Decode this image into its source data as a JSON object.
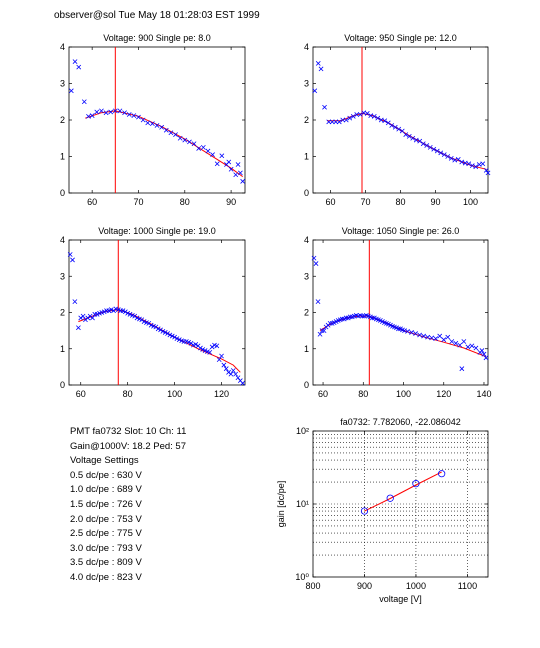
{
  "header": "observer@sol  Tue May 18 01:28:03 EST 1999",
  "info": {
    "pmt_line": "PMT fa0732 Slot: 10 Ch: 11",
    "gain_line": "Gain@1000V: 18.2  Ped: 57",
    "settings_title": "Voltage Settings",
    "settings": [
      "0.5 dc/pe : 630 V",
      "1.0 dc/pe : 689 V",
      "1.5 dc/pe : 726 V",
      "2.0 dc/pe : 753 V",
      "2.5 dc/pe : 775 V",
      "3.0 dc/pe : 793 V",
      "3.5 dc/pe : 809 V",
      "4.0 dc/pe : 823 V"
    ]
  },
  "colors": {
    "points": "#0000ff",
    "fit": "#ff0000",
    "axis": "#000000"
  },
  "chart_data": [
    {
      "type": "scatter",
      "title": "Voltage: 900 Single pe: 8.0",
      "xlim": [
        55,
        93
      ],
      "ylim": [
        0,
        4
      ],
      "xticks": [
        60,
        70,
        80,
        90
      ],
      "yticks": [
        0,
        1,
        2,
        3,
        4
      ],
      "single_pe_marker": 65,
      "points": [
        [
          55.5,
          2.8
        ],
        [
          56.3,
          3.6
        ],
        [
          57.1,
          3.45
        ],
        [
          58.3,
          2.5
        ],
        [
          59.2,
          2.1
        ],
        [
          60,
          2.12
        ],
        [
          61,
          2.22
        ],
        [
          62,
          2.25
        ],
        [
          63,
          2.2
        ],
        [
          64,
          2.22
        ],
        [
          65,
          2.25
        ],
        [
          66,
          2.25
        ],
        [
          67,
          2.2
        ],
        [
          68,
          2.15
        ],
        [
          69,
          2.12
        ],
        [
          70,
          2.08
        ],
        [
          71,
          2.0
        ],
        [
          72,
          1.92
        ],
        [
          73,
          1.9
        ],
        [
          74,
          1.85
        ],
        [
          75,
          1.8
        ],
        [
          76,
          1.72
        ],
        [
          77,
          1.65
        ],
        [
          78,
          1.6
        ],
        [
          79,
          1.5
        ],
        [
          80,
          1.45
        ],
        [
          81,
          1.4
        ],
        [
          82,
          1.35
        ],
        [
          83,
          1.22
        ],
        [
          84,
          1.25
        ],
        [
          85,
          1.15
        ],
        [
          86,
          1.05
        ],
        [
          87,
          0.8
        ],
        [
          88,
          1.02
        ],
        [
          89,
          0.78
        ],
        [
          89.5,
          0.85
        ],
        [
          90,
          0.65
        ],
        [
          91,
          0.5
        ],
        [
          91.5,
          0.78
        ],
        [
          92,
          0.55
        ],
        [
          92.5,
          0.32
        ]
      ],
      "fit": [
        [
          58.5,
          2.05
        ],
        [
          62,
          2.2
        ],
        [
          65,
          2.25
        ],
        [
          70,
          2.1
        ],
        [
          75,
          1.82
        ],
        [
          80,
          1.48
        ],
        [
          85,
          1.08
        ],
        [
          90,
          0.68
        ],
        [
          92.5,
          0.45
        ]
      ]
    },
    {
      "type": "scatter",
      "title": "Voltage: 950 Single pe: 12.0",
      "xlim": [
        55,
        105
      ],
      "ylim": [
        0,
        4
      ],
      "xticks": [
        60,
        70,
        80,
        90,
        100
      ],
      "yticks": [
        0,
        1,
        2,
        3,
        4
      ],
      "single_pe_marker": 69,
      "points": [
        [
          55.5,
          2.8
        ],
        [
          56.5,
          3.55
        ],
        [
          57.3,
          3.4
        ],
        [
          58.3,
          2.35
        ],
        [
          59.5,
          1.95
        ],
        [
          60.5,
          1.95
        ],
        [
          61.5,
          1.95
        ],
        [
          62.5,
          1.95
        ],
        [
          63.5,
          2.0
        ],
        [
          64.5,
          2.0
        ],
        [
          65.5,
          2.05
        ],
        [
          66.5,
          2.1
        ],
        [
          67.5,
          2.15
        ],
        [
          68.5,
          2.15
        ],
        [
          69.5,
          2.2
        ],
        [
          70.5,
          2.18
        ],
        [
          71.5,
          2.12
        ],
        [
          72.5,
          2.1
        ],
        [
          73.5,
          2.05
        ],
        [
          74.5,
          2.0
        ],
        [
          75.5,
          1.98
        ],
        [
          76.5,
          1.92
        ],
        [
          77.5,
          1.85
        ],
        [
          78.5,
          1.8
        ],
        [
          79.5,
          1.75
        ],
        [
          80.5,
          1.7
        ],
        [
          81.5,
          1.6
        ],
        [
          82.5,
          1.55
        ],
        [
          83.5,
          1.5
        ],
        [
          84.5,
          1.45
        ],
        [
          85.5,
          1.42
        ],
        [
          86.5,
          1.35
        ],
        [
          87.5,
          1.3
        ],
        [
          88.5,
          1.25
        ],
        [
          89.5,
          1.2
        ],
        [
          90.5,
          1.15
        ],
        [
          91.5,
          1.1
        ],
        [
          92.5,
          1.05
        ],
        [
          93.5,
          1.0
        ],
        [
          94.5,
          0.95
        ],
        [
          95.5,
          0.9
        ],
        [
          96.5,
          0.92
        ],
        [
          97.5,
          0.85
        ],
        [
          98.5,
          0.82
        ],
        [
          99.5,
          0.8
        ],
        [
          100.5,
          0.75
        ],
        [
          101.5,
          0.72
        ],
        [
          102.5,
          0.78
        ],
        [
          103.5,
          0.8
        ],
        [
          104.5,
          0.62
        ],
        [
          105,
          0.55
        ]
      ],
      "fit": [
        [
          59,
          1.98
        ],
        [
          63,
          1.98
        ],
        [
          66,
          2.1
        ],
        [
          69,
          2.18
        ],
        [
          72,
          2.12
        ],
        [
          77,
          1.9
        ],
        [
          82,
          1.6
        ],
        [
          88,
          1.28
        ],
        [
          94,
          0.98
        ],
        [
          100,
          0.76
        ],
        [
          104.5,
          0.65
        ]
      ]
    },
    {
      "type": "scatter",
      "title": "Voltage: 1000 Single pe: 19.0",
      "xlim": [
        55,
        130
      ],
      "ylim": [
        0,
        4
      ],
      "xticks": [
        60,
        80,
        100,
        120
      ],
      "yticks": [
        0,
        1,
        2,
        3,
        4
      ],
      "single_pe_marker": 76,
      "points": [
        [
          55.5,
          3.6
        ],
        [
          56.5,
          3.45
        ],
        [
          57.5,
          2.3
        ],
        [
          59,
          1.58
        ],
        [
          60,
          1.85
        ],
        [
          61,
          1.9
        ],
        [
          62,
          1.8
        ],
        [
          63,
          1.85
        ],
        [
          64,
          1.9
        ],
        [
          65,
          1.85
        ],
        [
          66,
          1.95
        ],
        [
          67,
          1.95
        ],
        [
          68,
          1.98
        ],
        [
          69,
          2.0
        ],
        [
          70,
          2.02
        ],
        [
          71,
          2.05
        ],
        [
          72,
          2.05
        ],
        [
          73,
          2.08
        ],
        [
          74,
          2.05
        ],
        [
          75,
          2.1
        ],
        [
          76,
          2.08
        ],
        [
          77,
          2.05
        ],
        [
          78,
          2.05
        ],
        [
          79,
          2.02
        ],
        [
          80,
          1.98
        ],
        [
          81,
          1.95
        ],
        [
          82,
          1.92
        ],
        [
          83,
          1.9
        ],
        [
          84,
          1.85
        ],
        [
          85,
          1.82
        ],
        [
          86,
          1.8
        ],
        [
          87,
          1.75
        ],
        [
          88,
          1.72
        ],
        [
          89,
          1.7
        ],
        [
          90,
          1.65
        ],
        [
          91,
          1.62
        ],
        [
          92,
          1.6
        ],
        [
          93,
          1.55
        ],
        [
          94,
          1.52
        ],
        [
          95,
          1.48
        ],
        [
          96,
          1.45
        ],
        [
          97,
          1.42
        ],
        [
          98,
          1.38
        ],
        [
          99,
          1.35
        ],
        [
          100,
          1.32
        ],
        [
          101,
          1.28
        ],
        [
          102,
          1.25
        ],
        [
          103,
          1.22
        ],
        [
          104,
          1.2
        ],
        [
          105,
          1.2
        ],
        [
          106,
          1.18
        ],
        [
          107,
          1.15
        ],
        [
          108,
          1.1
        ],
        [
          109,
          1.12
        ],
        [
          110,
          1.08
        ],
        [
          111,
          1.02
        ],
        [
          112,
          0.98
        ],
        [
          113,
          0.95
        ],
        [
          114,
          0.92
        ],
        [
          115,
          0.9
        ],
        [
          116,
          1.05
        ],
        [
          117,
          1.1
        ],
        [
          118,
          1.08
        ],
        [
          119,
          0.7
        ],
        [
          120,
          0.8
        ],
        [
          121,
          0.55
        ],
        [
          122,
          0.45
        ],
        [
          123,
          0.35
        ],
        [
          124,
          0.3
        ],
        [
          125,
          0.4
        ],
        [
          126,
          0.3
        ],
        [
          127,
          0.2
        ],
        [
          128,
          0.12
        ],
        [
          129,
          0.05
        ]
      ],
      "fit": [
        [
          59,
          1.75
        ],
        [
          65,
          1.9
        ],
        [
          70,
          2.02
        ],
        [
          76,
          2.08
        ],
        [
          82,
          1.95
        ],
        [
          90,
          1.68
        ],
        [
          100,
          1.32
        ],
        [
          110,
          1.0
        ],
        [
          120,
          0.72
        ],
        [
          125,
          0.55
        ],
        [
          128,
          0.35
        ]
      ]
    },
    {
      "type": "scatter",
      "title": "Voltage: 1050 Single pe: 26.0",
      "xlim": [
        55,
        142
      ],
      "ylim": [
        0,
        4
      ],
      "xticks": [
        60,
        80,
        100,
        120,
        140
      ],
      "yticks": [
        0,
        1,
        2,
        3,
        4
      ],
      "single_pe_marker": 83,
      "points": [
        [
          55.5,
          3.5
        ],
        [
          56.5,
          3.35
        ],
        [
          57.5,
          2.3
        ],
        [
          58.5,
          1.4
        ],
        [
          59.5,
          1.5
        ],
        [
          60.5,
          1.5
        ],
        [
          61.5,
          1.6
        ],
        [
          62.5,
          1.65
        ],
        [
          63.5,
          1.7
        ],
        [
          64.5,
          1.7
        ],
        [
          65.5,
          1.72
        ],
        [
          66.5,
          1.75
        ],
        [
          67.5,
          1.78
        ],
        [
          68.5,
          1.8
        ],
        [
          69.5,
          1.82
        ],
        [
          70.5,
          1.82
        ],
        [
          71.5,
          1.85
        ],
        [
          72.5,
          1.85
        ],
        [
          73.5,
          1.88
        ],
        [
          74.5,
          1.88
        ],
        [
          75.5,
          1.9
        ],
        [
          76.5,
          1.92
        ],
        [
          77.5,
          1.9
        ],
        [
          78.5,
          1.92
        ],
        [
          79.5,
          1.9
        ],
        [
          80.5,
          1.9
        ],
        [
          81.5,
          1.92
        ],
        [
          82.5,
          1.9
        ],
        [
          83.5,
          1.88
        ],
        [
          84.5,
          1.85
        ],
        [
          85.5,
          1.85
        ],
        [
          86.5,
          1.82
        ],
        [
          87.5,
          1.8
        ],
        [
          88.5,
          1.78
        ],
        [
          89.5,
          1.75
        ],
        [
          90.5,
          1.72
        ],
        [
          91.5,
          1.7
        ],
        [
          92.5,
          1.68
        ],
        [
          93.5,
          1.65
        ],
        [
          94.5,
          1.62
        ],
        [
          95.5,
          1.6
        ],
        [
          96.5,
          1.58
        ],
        [
          97.5,
          1.55
        ],
        [
          98.5,
          1.55
        ],
        [
          99.5,
          1.52
        ],
        [
          100.5,
          1.5
        ],
        [
          102,
          1.48
        ],
        [
          104,
          1.45
        ],
        [
          106,
          1.42
        ],
        [
          108,
          1.38
        ],
        [
          110,
          1.35
        ],
        [
          112,
          1.32
        ],
        [
          114,
          1.3
        ],
        [
          116,
          1.28
        ],
        [
          118,
          1.35
        ],
        [
          120,
          1.25
        ],
        [
          122,
          1.32
        ],
        [
          124,
          1.2
        ],
        [
          126,
          1.15
        ],
        [
          128,
          1.1
        ],
        [
          129,
          0.45
        ],
        [
          130,
          1.2
        ],
        [
          132,
          1.05
        ],
        [
          134,
          1.08
        ],
        [
          136,
          1.02
        ],
        [
          138,
          0.9
        ],
        [
          139,
          0.95
        ],
        [
          140,
          0.85
        ],
        [
          141,
          0.75
        ]
      ],
      "fit": [
        [
          58.5,
          1.5
        ],
        [
          65,
          1.72
        ],
        [
          72,
          1.85
        ],
        [
          78,
          1.9
        ],
        [
          83,
          1.9
        ],
        [
          90,
          1.75
        ],
        [
          100,
          1.5
        ],
        [
          110,
          1.33
        ],
        [
          120,
          1.18
        ],
        [
          130,
          1.02
        ],
        [
          141,
          0.78
        ]
      ]
    },
    {
      "type": "scatter",
      "title": "fa0732: 7.782060, -22.086042",
      "xlabel": "voltage [V]",
      "ylabel": "gain [dc/pe]",
      "xlim": [
        800,
        1140
      ],
      "ylim": [
        1,
        100
      ],
      "yscale": "log",
      "grid": true,
      "xticks": [
        800,
        900,
        1000,
        1100
      ],
      "yticks": [
        1,
        10,
        100
      ],
      "ytick_labels": [
        "10⁰",
        "10¹",
        "10²"
      ],
      "points": [
        [
          900,
          8.0
        ],
        [
          950,
          12.0
        ],
        [
          1000,
          19.0
        ],
        [
          1050,
          26.0
        ]
      ],
      "fit": [
        [
          900,
          8.0
        ],
        [
          950,
          11.9
        ],
        [
          1000,
          18.2
        ],
        [
          1050,
          27.5
        ]
      ]
    }
  ]
}
